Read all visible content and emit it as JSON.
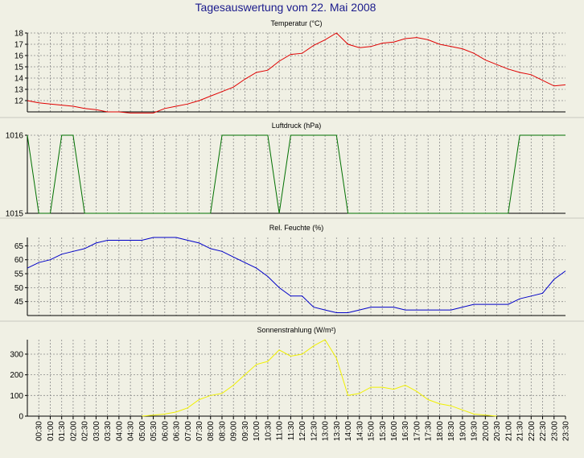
{
  "page": {
    "title": "Tagesauswertung vom 22. Mai 2008"
  },
  "colors": {
    "background": "#f0f0e4",
    "plot_background": "#f0f0e4",
    "grid": "#8a8a8a",
    "title": "#1a1a8c",
    "separator": "#c8c8c0",
    "temperature": "#e00000",
    "pressure": "#007000",
    "humidity": "#0000c8",
    "radiation": "#f0f000"
  },
  "time_axis": {
    "labels": [
      "00:30",
      "01:00",
      "01:30",
      "02:00",
      "02:30",
      "03:00",
      "03:30",
      "04:00",
      "04:30",
      "05:00",
      "05:30",
      "06:00",
      "06:30",
      "07:00",
      "07:30",
      "08:00",
      "08:30",
      "09:00",
      "09:30",
      "10:00",
      "10:30",
      "11:00",
      "11:30",
      "12:00",
      "12:30",
      "13:00",
      "13:30",
      "14:00",
      "14:30",
      "15:00",
      "15:30",
      "16:00",
      "16:30",
      "17:00",
      "17:30",
      "18:00",
      "18:30",
      "19:00",
      "19:30",
      "20:00",
      "20:30",
      "21:00",
      "21:30",
      "22:00",
      "22:30",
      "23:00",
      "23:30"
    ]
  },
  "chart_data": [
    {
      "type": "line",
      "title": "Temperatur (°C)",
      "ylim": [
        11,
        18
      ],
      "yticks": [
        "12",
        "13",
        "14",
        "15",
        "16",
        "17",
        "18"
      ],
      "grid": true,
      "series": [
        {
          "color": "temperature",
          "x": [
            0,
            0.5,
            1,
            1.5,
            2,
            2.5,
            3,
            3.5,
            4,
            4.5,
            5,
            5.5,
            6,
            6.5,
            7,
            7.5,
            8,
            8.5,
            9,
            9.5,
            10,
            10.5,
            11,
            11.5,
            12,
            12.5,
            13,
            13.5,
            14,
            14.5,
            15,
            15.5,
            16,
            16.5,
            17,
            17.5,
            18,
            18.5,
            19,
            19.5,
            20,
            20.5,
            21,
            21.5,
            22,
            22.5,
            23,
            23.5
          ],
          "values": [
            12.0,
            11.8,
            11.7,
            11.6,
            11.5,
            11.3,
            11.2,
            11.0,
            11.0,
            10.9,
            10.9,
            10.9,
            11.3,
            11.5,
            11.7,
            12.0,
            12.4,
            12.8,
            13.2,
            13.9,
            14.5,
            14.7,
            15.5,
            16.1,
            16.2,
            16.9,
            17.4,
            18.0,
            17.0,
            16.7,
            16.8,
            17.1,
            17.2,
            17.5,
            17.6,
            17.4,
            17.0,
            16.8,
            16.6,
            16.2,
            15.6,
            15.2,
            14.8,
            14.5,
            14.3,
            13.8,
            13.3,
            13.4
          ]
        }
      ]
    },
    {
      "type": "line",
      "title": "Luftdruck (hPa)",
      "ylim": [
        1015,
        1016
      ],
      "yticks": [
        "1015",
        "1016"
      ],
      "grid": true,
      "series": [
        {
          "color": "pressure",
          "x": [
            0,
            0.5,
            1,
            1.5,
            2,
            2.5,
            3,
            3.5,
            4,
            4.5,
            5,
            5.5,
            6,
            6.5,
            7,
            7.5,
            8,
            8.5,
            9,
            9.5,
            10,
            10.5,
            11,
            11.5,
            12,
            12.5,
            13,
            13.5,
            14,
            14.5,
            15,
            15.5,
            16,
            16.5,
            17,
            17.5,
            18,
            18.5,
            19,
            19.5,
            20,
            20.5,
            21,
            21.5,
            22,
            22.5,
            23,
            23.5
          ],
          "values": [
            1016,
            1015,
            1015,
            1016,
            1016,
            1015,
            1015,
            1015,
            1015,
            1015,
            1015,
            1015,
            1015,
            1015,
            1015,
            1015,
            1015,
            1016,
            1016,
            1016,
            1016,
            1016,
            1015,
            1016,
            1016,
            1016,
            1016,
            1016,
            1015,
            1015,
            1015,
            1015,
            1015,
            1015,
            1015,
            1015,
            1015,
            1015,
            1015,
            1015,
            1015,
            1015,
            1015,
            1016,
            1016,
            1016,
            1016,
            1016
          ]
        }
      ]
    },
    {
      "type": "line",
      "title": "Rel. Feuchte (%)",
      "ylim": [
        40,
        68
      ],
      "yticks": [
        "45",
        "50",
        "55",
        "60",
        "65"
      ],
      "grid": true,
      "series": [
        {
          "color": "humidity",
          "x": [
            0,
            0.5,
            1,
            1.5,
            2,
            2.5,
            3,
            3.5,
            4,
            4.5,
            5,
            5.5,
            6,
            6.5,
            7,
            7.5,
            8,
            8.5,
            9,
            9.5,
            10,
            10.5,
            11,
            11.5,
            12,
            12.5,
            13,
            13.5,
            14,
            14.5,
            15,
            15.5,
            16,
            16.5,
            17,
            17.5,
            18,
            18.5,
            19,
            19.5,
            20,
            20.5,
            21,
            21.5,
            22,
            22.5,
            23,
            23.5
          ],
          "values": [
            57,
            59,
            60,
            62,
            63,
            64,
            66,
            67,
            67,
            67,
            67,
            68,
            68,
            68,
            67,
            66,
            64,
            63,
            61,
            59,
            57,
            54,
            50,
            47,
            47,
            43,
            42,
            41,
            41,
            42,
            43,
            43,
            43,
            42,
            42,
            42,
            42,
            42,
            43,
            44,
            44,
            44,
            44,
            46,
            47,
            48,
            53,
            56
          ]
        }
      ]
    },
    {
      "type": "line",
      "title": "Sonnenstrahlung (W/m²)",
      "ylim": [
        0,
        370
      ],
      "yticks": [
        "0",
        "100",
        "200",
        "300"
      ],
      "grid": true,
      "series": [
        {
          "color": "radiation",
          "x": [
            5,
            5.5,
            6,
            6.5,
            7,
            7.5,
            8,
            8.5,
            9,
            9.5,
            10,
            10.5,
            11,
            11.5,
            12,
            12.5,
            13,
            13.5,
            14,
            14.5,
            15,
            15.5,
            16,
            16.5,
            17,
            17.5,
            18,
            18.5,
            19,
            19.5,
            20,
            20.5
          ],
          "values": [
            0,
            5,
            10,
            20,
            40,
            80,
            100,
            110,
            150,
            200,
            250,
            265,
            320,
            290,
            300,
            340,
            370,
            280,
            100,
            110,
            140,
            140,
            130,
            150,
            120,
            80,
            60,
            50,
            30,
            10,
            5,
            0
          ]
        }
      ]
    }
  ]
}
